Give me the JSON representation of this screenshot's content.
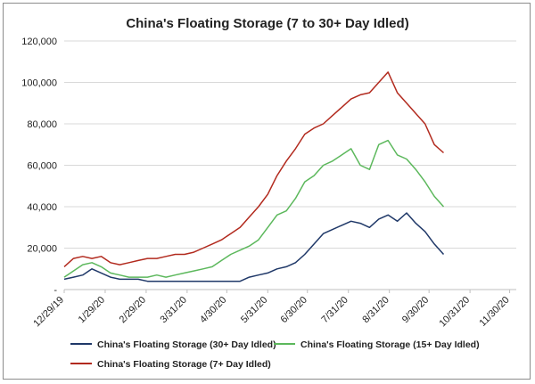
{
  "chart_data": {
    "type": "line",
    "title": "China's Floating Storage (7 to 30+ Day Idled)",
    "xlabel": "",
    "ylabel": "",
    "ylim": [
      0,
      120000
    ],
    "yticks": [
      0,
      20000,
      40000,
      60000,
      80000,
      100000,
      120000
    ],
    "ytick_labels": [
      "-",
      "20,000",
      "40,000",
      "60,000",
      "80,000",
      "100,000",
      "120,000"
    ],
    "xlim": [
      "2019-12-29",
      "2020-12-05"
    ],
    "xticks": [
      "2019-12-29",
      "2020-01-29",
      "2020-02-29",
      "2020-03-31",
      "2020-04-30",
      "2020-05-31",
      "2020-06-30",
      "2020-07-31",
      "2020-08-31",
      "2020-09-30",
      "2020-10-31",
      "2020-11-30"
    ],
    "xtick_labels": [
      "12/29/19",
      "1/29/20",
      "2/29/20",
      "3/31/20",
      "4/30/20",
      "5/31/20",
      "6/30/20",
      "7/31/20",
      "8/31/20",
      "9/30/20",
      "10/31/20",
      "11/30/20"
    ],
    "grid": "horizontal",
    "legend_position": "bottom",
    "series": [
      {
        "name": "China's Floating Storage (30+ Day Idled)",
        "color": "#1f3868",
        "x": [
          "2019-12-29",
          "2020-01-05",
          "2020-01-12",
          "2020-01-19",
          "2020-01-26",
          "2020-02-02",
          "2020-02-09",
          "2020-02-16",
          "2020-02-23",
          "2020-03-01",
          "2020-03-08",
          "2020-03-15",
          "2020-03-22",
          "2020-03-29",
          "2020-04-05",
          "2020-04-12",
          "2020-04-19",
          "2020-04-26",
          "2020-05-03",
          "2020-05-10",
          "2020-05-17",
          "2020-05-24",
          "2020-05-31",
          "2020-06-07",
          "2020-06-14",
          "2020-06-21",
          "2020-06-28",
          "2020-07-05",
          "2020-07-12",
          "2020-07-19",
          "2020-07-26",
          "2020-08-02",
          "2020-08-09",
          "2020-08-16",
          "2020-08-23",
          "2020-08-30",
          "2020-09-06",
          "2020-09-13",
          "2020-09-20",
          "2020-09-27",
          "2020-10-04",
          "2020-10-11"
        ],
        "y": [
          5000,
          6000,
          7000,
          10000,
          8000,
          6000,
          5000,
          5000,
          5000,
          4000,
          4000,
          4000,
          4000,
          4000,
          4000,
          4000,
          4000,
          4000,
          4000,
          4000,
          6000,
          7000,
          8000,
          10000,
          11000,
          13000,
          17000,
          22000,
          27000,
          29000,
          31000,
          33000,
          32000,
          30000,
          34000,
          36000,
          33000,
          37000,
          32000,
          28000,
          22000,
          17000
        ]
      },
      {
        "name": "China's Floating Storage (15+ Day Idled)",
        "color": "#5cb85c",
        "x": [
          "2019-12-29",
          "2020-01-05",
          "2020-01-12",
          "2020-01-19",
          "2020-01-26",
          "2020-02-02",
          "2020-02-09",
          "2020-02-16",
          "2020-02-23",
          "2020-03-01",
          "2020-03-08",
          "2020-03-15",
          "2020-03-22",
          "2020-03-29",
          "2020-04-05",
          "2020-04-12",
          "2020-04-19",
          "2020-04-26",
          "2020-05-03",
          "2020-05-10",
          "2020-05-17",
          "2020-05-24",
          "2020-05-31",
          "2020-06-07",
          "2020-06-14",
          "2020-06-21",
          "2020-06-28",
          "2020-07-05",
          "2020-07-12",
          "2020-07-19",
          "2020-07-26",
          "2020-08-02",
          "2020-08-09",
          "2020-08-16",
          "2020-08-23",
          "2020-08-30",
          "2020-09-06",
          "2020-09-13",
          "2020-09-20",
          "2020-09-27",
          "2020-10-04",
          "2020-10-11"
        ],
        "y": [
          6000,
          9000,
          12000,
          13000,
          11000,
          8000,
          7000,
          6000,
          6000,
          6000,
          7000,
          6000,
          7000,
          8000,
          9000,
          10000,
          11000,
          14000,
          17000,
          19000,
          21000,
          24000,
          30000,
          36000,
          38000,
          44000,
          52000,
          55000,
          60000,
          62000,
          65000,
          68000,
          60000,
          58000,
          70000,
          72000,
          65000,
          63000,
          58000,
          52000,
          45000,
          40000
        ]
      },
      {
        "name": "China's Floating Storage (7+ Day Idled)",
        "color": "#b22a1e",
        "x": [
          "2019-12-29",
          "2020-01-05",
          "2020-01-12",
          "2020-01-19",
          "2020-01-26",
          "2020-02-02",
          "2020-02-09",
          "2020-02-16",
          "2020-02-23",
          "2020-03-01",
          "2020-03-08",
          "2020-03-15",
          "2020-03-22",
          "2020-03-29",
          "2020-04-05",
          "2020-04-12",
          "2020-04-19",
          "2020-04-26",
          "2020-05-03",
          "2020-05-10",
          "2020-05-17",
          "2020-05-24",
          "2020-05-31",
          "2020-06-07",
          "2020-06-14",
          "2020-06-21",
          "2020-06-28",
          "2020-07-05",
          "2020-07-12",
          "2020-07-19",
          "2020-07-26",
          "2020-08-02",
          "2020-08-09",
          "2020-08-16",
          "2020-08-23",
          "2020-08-30",
          "2020-09-06",
          "2020-09-13",
          "2020-09-20",
          "2020-09-27",
          "2020-10-04",
          "2020-10-11"
        ],
        "y": [
          11000,
          15000,
          16000,
          15000,
          16000,
          13000,
          12000,
          13000,
          14000,
          15000,
          15000,
          16000,
          17000,
          17000,
          18000,
          20000,
          22000,
          24000,
          27000,
          30000,
          35000,
          40000,
          46000,
          55000,
          62000,
          68000,
          75000,
          78000,
          80000,
          84000,
          88000,
          92000,
          94000,
          95000,
          100000,
          105000,
          95000,
          90000,
          85000,
          80000,
          70000,
          66000
        ]
      }
    ]
  }
}
